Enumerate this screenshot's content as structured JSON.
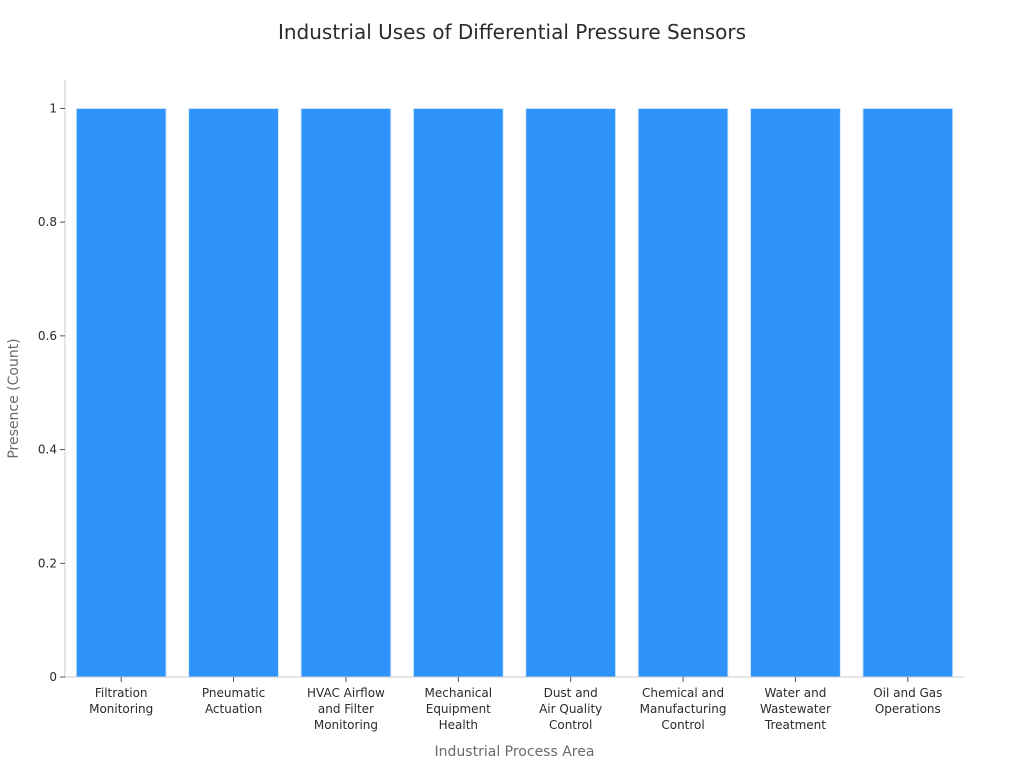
{
  "chart_data": {
    "type": "bar",
    "title": "Industrial Uses of Differential Pressure Sensors",
    "xlabel": "Industrial Process Area",
    "ylabel": "Presence (Count)",
    "categories": [
      [
        "Filtration",
        "Monitoring"
      ],
      [
        "Pneumatic",
        "Actuation"
      ],
      [
        "HVAC Airflow",
        "and Filter",
        "Monitoring"
      ],
      [
        "Mechanical",
        "Equipment",
        "Health"
      ],
      [
        "Dust and",
        "Air Quality",
        "Control"
      ],
      [
        "Chemical and",
        "Manufacturing",
        "Control"
      ],
      [
        "Water and",
        "Wastewater",
        "Treatment"
      ],
      [
        "Oil and Gas",
        "Operations"
      ]
    ],
    "values": [
      1,
      1,
      1,
      1,
      1,
      1,
      1,
      1
    ],
    "ylim": [
      0,
      1.05
    ],
    "yticks": [
      "0",
      "0.2",
      "0.4",
      "0.6",
      "0.8",
      "1"
    ],
    "ytick_values": [
      0,
      0.2,
      0.4,
      0.6,
      0.8,
      1
    ],
    "grid": false,
    "colors": {
      "bar": "#2e93fa",
      "bar_edge": "#d6e9fb",
      "axis": "#cccccc"
    }
  }
}
